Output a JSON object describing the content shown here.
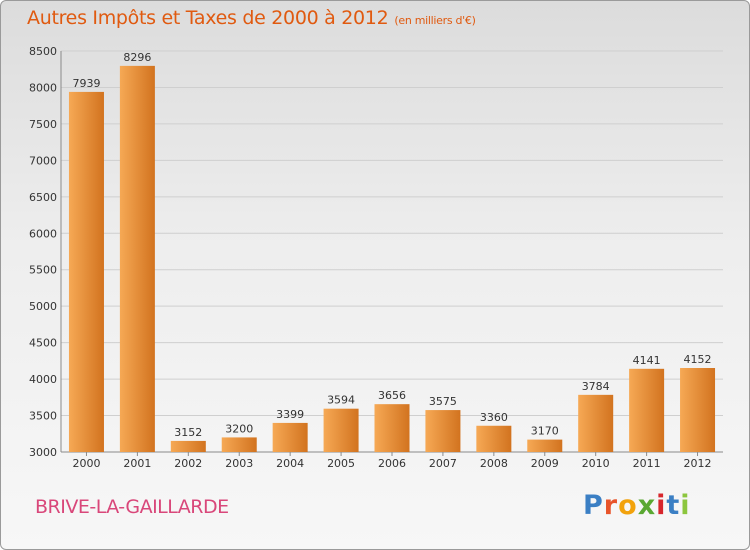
{
  "header": {
    "title": "Autres Impôts et Taxes de 2000 à 2012",
    "subtitle": "(en milliers d'€)"
  },
  "footer": {
    "city": "BRIVE-LA-GAILLARDE",
    "logo_letters": [
      "P",
      "r",
      "o",
      "x",
      "i",
      "t",
      "i"
    ],
    "logo_colors": [
      "#3b7fc4",
      "#e8542a",
      "#f2a20c",
      "#5aa832",
      "#d7262c",
      "#3b7fc4",
      "#8cc63e"
    ]
  },
  "colors": {
    "bar_light": "#f6a955",
    "bar_dark": "#d2731f",
    "title": "#e05a10",
    "city": "#d9477a"
  },
  "chart_data": {
    "type": "bar",
    "categories": [
      "2000",
      "2001",
      "2002",
      "2003",
      "2004",
      "2005",
      "2006",
      "2007",
      "2008",
      "2009",
      "2010",
      "2011",
      "2012"
    ],
    "values": [
      7939,
      8296,
      3152,
      3200,
      3399,
      3594,
      3656,
      3575,
      3360,
      3170,
      3784,
      4141,
      4152
    ],
    "data_labels": [
      "7939",
      "8296",
      "3152",
      "3200",
      "3399",
      "3594",
      "3656",
      "3575",
      "3360",
      "3170",
      "3784",
      "4141",
      "4152"
    ],
    "y_ticks": [
      3000,
      3500,
      4000,
      4500,
      5000,
      5500,
      6000,
      6500,
      7000,
      7500,
      8000,
      8500
    ],
    "ylim": [
      3000,
      8500
    ],
    "grid": true,
    "title": "Autres Impôts et Taxes de 2000 à 2012",
    "xlabel": "",
    "ylabel": ""
  }
}
